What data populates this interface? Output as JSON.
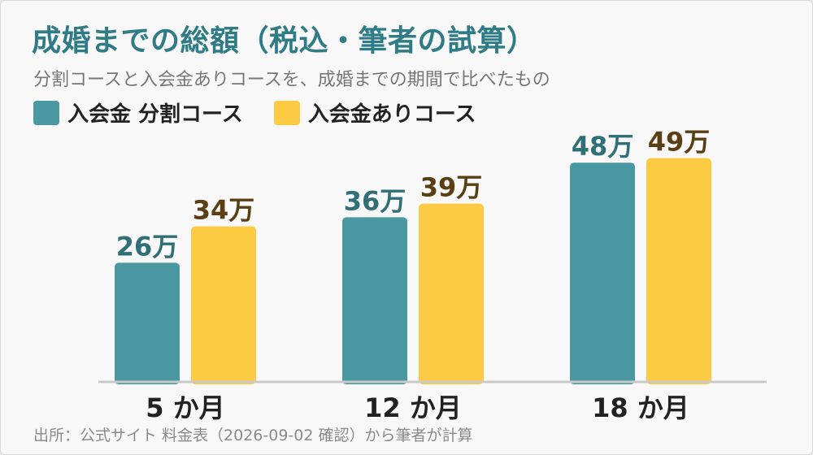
{
  "title": "成婚までの総額（税込・筆者の試算）",
  "subtitle": "分割コースと入会金ありコースを、成婚までの期間で比べたもの",
  "source": "出所：公式サイト 料金表（2026-09-02 確認）から筆者が計算",
  "colors": {
    "series1": "#4a98a1",
    "series2": "#fccb43",
    "series1_label": "#2f6f78",
    "series2_label": "#5a3f14",
    "axis": "#c9c9c9",
    "title": "#2f7b86"
  },
  "chart_data": {
    "type": "bar",
    "categories": [
      "5 か月",
      "12 か月",
      "18 か月"
    ],
    "series": [
      {
        "name": "入会金 分割コース",
        "values": [
          26,
          36,
          48
        ],
        "labels": [
          "26万",
          "36万",
          "48万"
        ]
      },
      {
        "name": "入会金ありコース",
        "values": [
          34,
          39,
          49
        ],
        "labels": [
          "34万",
          "39万",
          "49万"
        ]
      }
    ],
    "unit": "万",
    "ylim": [
      0,
      52
    ],
    "grid": false,
    "legend": "top-left"
  }
}
